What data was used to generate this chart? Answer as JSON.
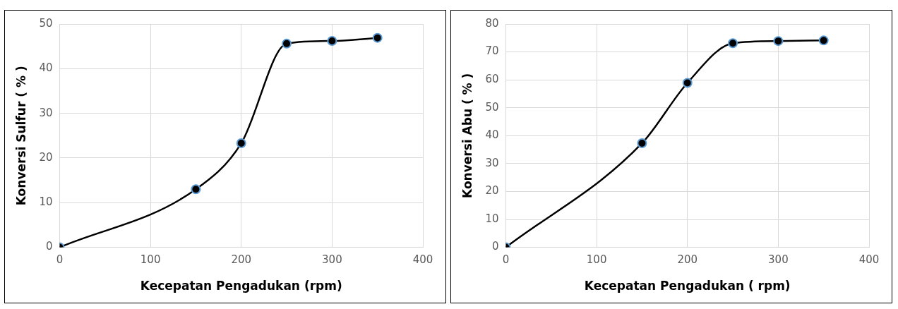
{
  "chart_data": [
    {
      "type": "line",
      "xlabel": "Kecepatan Pengadukan (rpm)",
      "ylabel": "Konversi Sulfur ( % )",
      "x": [
        0,
        150,
        200,
        250,
        300,
        350
      ],
      "series": [
        {
          "color": "#000000",
          "values": [
            0,
            13,
            23.3,
            45.6,
            46.2,
            46.9
          ]
        }
      ],
      "xlim": [
        0,
        400
      ],
      "xticks": [
        0,
        100,
        200,
        300,
        400
      ],
      "ylim": [
        0,
        50
      ],
      "yticks": [
        0,
        10,
        20,
        30,
        40,
        50
      ],
      "grid": true,
      "legend": false,
      "marker": "circle",
      "line_style": "solid"
    },
    {
      "type": "line",
      "xlabel": "Kecepatan Pengadukan ( rpm)",
      "ylabel": "Konversi Abu ( % )",
      "x": [
        0,
        150,
        200,
        250,
        300,
        350
      ],
      "series": [
        {
          "color": "#000000",
          "values": [
            0,
            37.3,
            58.9,
            73.1,
            73.9,
            74.1
          ]
        }
      ],
      "xlim": [
        0,
        400
      ],
      "xticks": [
        0,
        100,
        200,
        300,
        400
      ],
      "ylim": [
        0,
        80
      ],
      "yticks": [
        0,
        10,
        20,
        30,
        40,
        50,
        60,
        70,
        80
      ],
      "grid": true,
      "legend": false,
      "marker": "circle",
      "line_style": "solid"
    }
  ]
}
